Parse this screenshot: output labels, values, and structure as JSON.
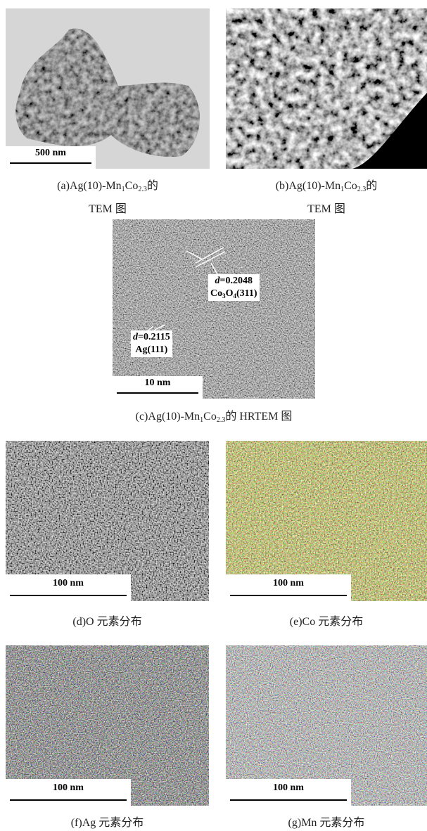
{
  "panels": [
    {
      "scale_bar": "500 nm",
      "caption_lines": [
        [
          {
            "text": "(a)Ag(10)-Mn"
          },
          {
            "text": "1",
            "sub": true
          },
          {
            "text": "Co"
          },
          {
            "text": "2.3",
            "sub": true
          },
          {
            "text": "的"
          }
        ],
        [
          {
            "text": "TEM 图"
          }
        ]
      ]
    },
    {
      "caption_lines": [
        [
          {
            "text": "(b)Ag(10)-Mn"
          },
          {
            "text": "1",
            "sub": true
          },
          {
            "text": "Co"
          },
          {
            "text": "2.3",
            "sub": true
          },
          {
            "text": "的"
          }
        ],
        [
          {
            "text": "TEM 图"
          }
        ]
      ]
    },
    {
      "scale_bar": "10 nm",
      "annotations": [
        [
          [
            {
              "text": "d",
              "italic": true
            },
            {
              "text": "=0.2048"
            }
          ],
          [
            {
              "text": "Co"
            },
            {
              "text": "3",
              "sub": true
            },
            {
              "text": "O"
            },
            {
              "text": "4",
              "sub": true
            },
            {
              "text": "(311)"
            }
          ]
        ],
        [
          [
            {
              "text": "d",
              "italic": true
            },
            {
              "text": "=0.2115"
            }
          ],
          [
            {
              "text": "Ag(111)"
            }
          ]
        ]
      ],
      "caption_lines": [
        [
          {
            "text": "(c)Ag(10)-Mn"
          },
          {
            "text": "1",
            "sub": true
          },
          {
            "text": "Co"
          },
          {
            "text": "2.3",
            "sub": true
          },
          {
            "text": "的 HRTEM 图"
          }
        ]
      ]
    },
    {
      "scale_bar": "100 nm",
      "caption_lines": [
        [
          {
            "text": "(d)O 元素分布"
          }
        ]
      ]
    },
    {
      "scale_bar": "100 nm",
      "caption_lines": [
        [
          {
            "text": "(e)Co 元素分布"
          }
        ]
      ]
    },
    {
      "scale_bar": "100 nm",
      "caption_lines": [
        [
          {
            "text": "(f)Ag 元素分布"
          }
        ]
      ]
    },
    {
      "scale_bar": "100 nm",
      "caption_lines": [
        [
          {
            "text": "(g)Mn 元素分布"
          }
        ]
      ]
    }
  ]
}
